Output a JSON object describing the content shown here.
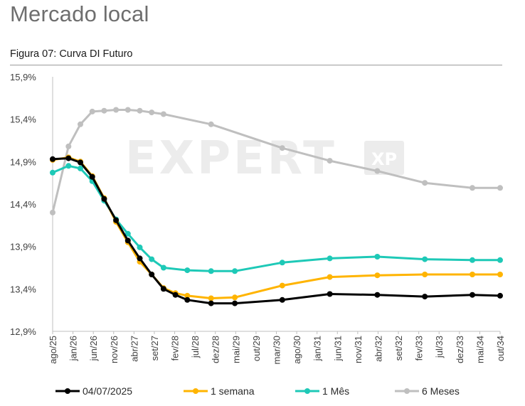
{
  "page": {
    "section_title": "Mercado local",
    "figure_title": "Figura 07: Curva DI Futuro"
  },
  "watermark": {
    "text": "EXPERT",
    "badge": "XP"
  },
  "chart_data": {
    "type": "line",
    "title": "Figura 07: Curva DI Futuro",
    "xlabel": "",
    "ylabel": "",
    "ylim": [
      12.9,
      15.9
    ],
    "yticks": [
      "15,9%",
      "15,4%",
      "14,9%",
      "14,4%",
      "13,9%",
      "13,4%",
      "12,9%"
    ],
    "ytick_values": [
      15.9,
      15.4,
      14.9,
      14.4,
      13.9,
      13.4,
      12.9
    ],
    "xlim": [
      0,
      113
    ],
    "xticks": [
      "ago/25",
      "jan/26",
      "jun/26",
      "nov/26",
      "abr/27",
      "set/27",
      "fev/28",
      "jul/28",
      "dez/28",
      "mai/29",
      "out/29",
      "mar/30",
      "ago/30",
      "jan/31",
      "jun/31",
      "nov/31",
      "abr/32",
      "set/32",
      "fev/33",
      "jul/33",
      "dez/33",
      "mai/34",
      "out/34"
    ],
    "grid": false,
    "legend_position": "bottom",
    "series": [
      {
        "name": "04/07/2025",
        "color": "#000000",
        "x": [
          0,
          4,
          7,
          10,
          13,
          16,
          19,
          22,
          25,
          28,
          31,
          34,
          40,
          46,
          58,
          70,
          82,
          94,
          106,
          113
        ],
        "y": [
          14.93,
          14.94,
          14.89,
          14.72,
          14.46,
          14.21,
          13.97,
          13.76,
          13.57,
          13.4,
          13.33,
          13.27,
          13.23,
          13.23,
          13.27,
          13.34,
          13.33,
          13.31,
          13.33,
          13.32
        ]
      },
      {
        "name": "1 semana",
        "color": "#ffb400",
        "x": [
          0,
          4,
          7,
          10,
          13,
          16,
          19,
          22,
          25,
          28,
          31,
          34,
          40,
          46,
          58,
          70,
          82,
          94,
          106,
          113
        ],
        "y": [
          14.92,
          14.95,
          14.9,
          14.73,
          14.47,
          14.19,
          13.95,
          13.72,
          13.57,
          13.41,
          13.35,
          13.32,
          13.29,
          13.3,
          13.44,
          13.54,
          13.56,
          13.57,
          13.57,
          13.57
        ]
      },
      {
        "name": "1 Mês",
        "color": "#1ec9b7",
        "x": [
          0,
          4,
          7,
          10,
          13,
          16,
          19,
          22,
          25,
          28,
          34,
          40,
          46,
          58,
          70,
          82,
          94,
          106,
          113
        ],
        "y": [
          14.77,
          14.85,
          14.82,
          14.67,
          14.44,
          14.22,
          14.05,
          13.89,
          13.75,
          13.65,
          13.62,
          13.61,
          13.61,
          13.71,
          13.76,
          13.78,
          13.75,
          13.74,
          13.74
        ]
      },
      {
        "name": "6 Meses",
        "color": "#bfbfbf",
        "x": [
          0,
          4,
          7,
          10,
          13,
          16,
          19,
          22,
          25,
          28,
          40,
          58,
          70,
          82,
          94,
          106,
          113
        ],
        "y": [
          14.3,
          15.08,
          15.34,
          15.49,
          15.5,
          15.51,
          15.51,
          15.5,
          15.48,
          15.46,
          15.34,
          15.06,
          14.91,
          14.79,
          14.65,
          14.59,
          14.59
        ]
      }
    ]
  }
}
